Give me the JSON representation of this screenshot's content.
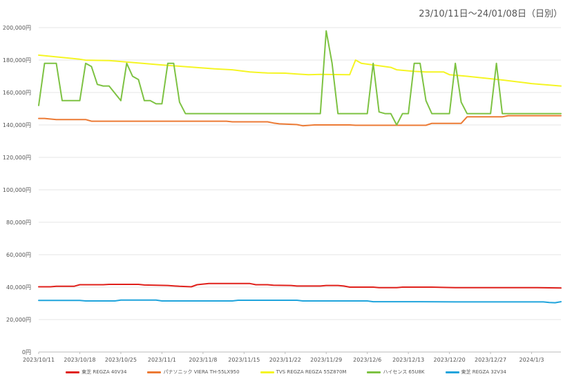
{
  "chart_data": {
    "type": "line",
    "title": "",
    "subtitle": "23/10/11日～24/01/08日（日別）",
    "xlabel": "",
    "ylabel": "",
    "ylim": [
      0,
      200000
    ],
    "y_ticks": [
      0,
      20000,
      40000,
      60000,
      80000,
      100000,
      120000,
      140000,
      160000,
      180000,
      200000
    ],
    "y_tick_labels": [
      "0円",
      "20,000円",
      "40,000円",
      "60,000円",
      "80,000円",
      "100,000円",
      "120,000円",
      "140,000円",
      "160,000円",
      "180,000円",
      "200,000円"
    ],
    "x_ticks": [
      "2023/10/11",
      "2023/10/18",
      "2023/10/25",
      "2023/11/1",
      "2023/11/8",
      "2023/11/15",
      "2023/11/22",
      "2023/11/29",
      "2023/12/6",
      "2023/12/13",
      "2023/12/20",
      "2023/12/27",
      "2024/1/3"
    ],
    "x_range": [
      "2023/10/11",
      "2024/1/8"
    ],
    "grid": "horizontal",
    "legend_position": "bottom",
    "series": [
      {
        "name": "東芝 REGZA 40V34",
        "color": "#e0201b",
        "points": [
          [
            "2023/10/11",
            40200
          ],
          [
            "2023/10/13",
            40200
          ],
          [
            "2023/10/14",
            40500
          ],
          [
            "2023/10/17",
            40500
          ],
          [
            "2023/10/18",
            41500
          ],
          [
            "2023/10/22",
            41500
          ],
          [
            "2023/10/23",
            41700
          ],
          [
            "2023/10/28",
            41700
          ],
          [
            "2023/10/29",
            41300
          ],
          [
            "2023/11/2",
            41000
          ],
          [
            "2023/11/4",
            40500
          ],
          [
            "2023/11/6",
            40200
          ],
          [
            "2023/11/7",
            41500
          ],
          [
            "2023/11/9",
            42200
          ],
          [
            "2023/11/16",
            42200
          ],
          [
            "2023/11/17",
            41500
          ],
          [
            "2023/11/19",
            41500
          ],
          [
            "2023/11/20",
            41200
          ],
          [
            "2023/11/23",
            41000
          ],
          [
            "2023/11/24",
            40700
          ],
          [
            "2023/11/28",
            40700
          ],
          [
            "2023/11/29",
            41000
          ],
          [
            "2023/12/1",
            41000
          ],
          [
            "2023/12/2",
            40700
          ],
          [
            "2023/12/3",
            40000
          ],
          [
            "2023/12/7",
            40000
          ],
          [
            "2023/12/8",
            39700
          ],
          [
            "2023/12/11",
            39700
          ],
          [
            "2023/12/12",
            40000
          ],
          [
            "2023/12/17",
            40000
          ],
          [
            "2023/12/21",
            39700
          ],
          [
            "2023/12/26",
            39700
          ],
          [
            "2024/1/4",
            39700
          ],
          [
            "2024/1/8",
            39500
          ]
        ]
      },
      {
        "name": "パナソニック VIERA TH-55LX950",
        "color": "#ec7a34",
        "points": [
          [
            "2023/10/11",
            144000
          ],
          [
            "2023/10/12",
            144000
          ],
          [
            "2023/10/14",
            143300
          ],
          [
            "2023/10/19",
            143300
          ],
          [
            "2023/10/20",
            142300
          ],
          [
            "2023/11/12",
            142300
          ],
          [
            "2023/11/13",
            141900
          ],
          [
            "2023/11/19",
            141900
          ],
          [
            "2023/11/20",
            141200
          ],
          [
            "2023/11/21",
            140700
          ],
          [
            "2023/11/24",
            140200
          ],
          [
            "2023/11/25",
            139500
          ],
          [
            "2023/11/27",
            140000
          ],
          [
            "2023/12/3",
            140000
          ],
          [
            "2023/12/4",
            139800
          ],
          [
            "2023/12/16",
            139800
          ],
          [
            "2023/12/17",
            141000
          ],
          [
            "2023/12/22",
            141000
          ],
          [
            "2023/12/23",
            145000
          ],
          [
            "2023/12/29",
            145000
          ],
          [
            "2023/12/30",
            145700
          ],
          [
            "2024/1/8",
            145700
          ]
        ]
      },
      {
        "name": "TVS REGZA REGZA 55Z870M",
        "color": "#f5f523",
        "points": [
          [
            "2023/10/11",
            183000
          ],
          [
            "2023/10/18",
            180500
          ],
          [
            "2023/10/19",
            179900
          ],
          [
            "2023/10/23",
            179700
          ],
          [
            "2023/10/25",
            179100
          ],
          [
            "2023/11/1",
            177000
          ],
          [
            "2023/11/10",
            174600
          ],
          [
            "2023/11/13",
            174000
          ],
          [
            "2023/11/16",
            172700
          ],
          [
            "2023/11/19",
            172000
          ],
          [
            "2023/11/22",
            171900
          ],
          [
            "2023/11/24",
            171400
          ],
          [
            "2023/11/26",
            171000
          ],
          [
            "2023/11/28",
            171200
          ],
          [
            "2023/12/3",
            171000
          ],
          [
            "2023/12/4",
            180000
          ],
          [
            "2023/12/5",
            178000
          ],
          [
            "2023/12/8",
            176500
          ],
          [
            "2023/12/10",
            175500
          ],
          [
            "2023/12/11",
            174000
          ],
          [
            "2023/12/14",
            173000
          ],
          [
            "2023/12/16",
            172700
          ],
          [
            "2023/12/19",
            172700
          ],
          [
            "2023/12/20",
            171000
          ],
          [
            "2023/12/23",
            170000
          ],
          [
            "2023/12/29",
            167700
          ],
          [
            "2024/1/3",
            165500
          ],
          [
            "2024/1/8",
            164000
          ]
        ]
      },
      {
        "name": "ハイセンス 65U8K",
        "color": "#7dc242",
        "points": [
          [
            "2023/10/11",
            152000
          ],
          [
            "2023/10/12",
            178000
          ],
          [
            "2023/10/14",
            178000
          ],
          [
            "2023/10/15",
            155000
          ],
          [
            "2023/10/18",
            155000
          ],
          [
            "2023/10/19",
            178000
          ],
          [
            "2023/10/20",
            176000
          ],
          [
            "2023/10/21",
            165000
          ],
          [
            "2023/10/22",
            164000
          ],
          [
            "2023/10/23",
            164000
          ],
          [
            "2023/10/25",
            155000
          ],
          [
            "2023/10/26",
            178000
          ],
          [
            "2023/10/27",
            170000
          ],
          [
            "2023/10/28",
            168000
          ],
          [
            "2023/10/29",
            155000
          ],
          [
            "2023/10/30",
            155000
          ],
          [
            "2023/10/31",
            153000
          ],
          [
            "2023/11/1",
            153000
          ],
          [
            "2023/11/2",
            178000
          ],
          [
            "2023/11/3",
            178000
          ],
          [
            "2023/11/4",
            154000
          ],
          [
            "2023/11/5",
            147000
          ],
          [
            "2023/11/28",
            147000
          ],
          [
            "2023/11/29",
            198000
          ],
          [
            "2023/11/30",
            178000
          ],
          [
            "2023/12/1",
            147000
          ],
          [
            "2023/12/6",
            147000
          ],
          [
            "2023/12/7",
            178000
          ],
          [
            "2023/12/8",
            148000
          ],
          [
            "2023/12/9",
            147000
          ],
          [
            "2023/12/10",
            147000
          ],
          [
            "2023/12/11",
            140000
          ],
          [
            "2023/12/12",
            147000
          ],
          [
            "2023/12/13",
            147000
          ],
          [
            "2023/12/14",
            178000
          ],
          [
            "2023/12/15",
            178000
          ],
          [
            "2023/12/16",
            155000
          ],
          [
            "2023/12/17",
            147000
          ],
          [
            "2023/12/20",
            147000
          ],
          [
            "2023/12/21",
            178000
          ],
          [
            "2023/12/22",
            154000
          ],
          [
            "2023/12/23",
            147000
          ],
          [
            "2023/12/27",
            147000
          ],
          [
            "2023/12/28",
            178000
          ],
          [
            "2023/12/29",
            147000
          ],
          [
            "2024/1/8",
            147000
          ]
        ]
      },
      {
        "name": "東芝 REGZA 32V34",
        "color": "#1fa4dc",
        "points": [
          [
            "2023/10/11",
            31800
          ],
          [
            "2023/10/18",
            31800
          ],
          [
            "2023/10/19",
            31500
          ],
          [
            "2023/10/24",
            31500
          ],
          [
            "2023/10/25",
            32000
          ],
          [
            "2023/10/31",
            32000
          ],
          [
            "2023/11/1",
            31500
          ],
          [
            "2023/11/13",
            31500
          ],
          [
            "2023/11/14",
            31900
          ],
          [
            "2023/11/24",
            31900
          ],
          [
            "2023/11/25",
            31500
          ],
          [
            "2023/12/6",
            31500
          ],
          [
            "2023/12/7",
            31000
          ],
          [
            "2023/12/15",
            31000
          ],
          [
            "2023/12/21",
            30900
          ],
          [
            "2024/1/5",
            30900
          ],
          [
            "2024/1/6",
            30500
          ],
          [
            "2024/1/7",
            30400
          ],
          [
            "2024/1/8",
            31000
          ]
        ]
      }
    ]
  }
}
